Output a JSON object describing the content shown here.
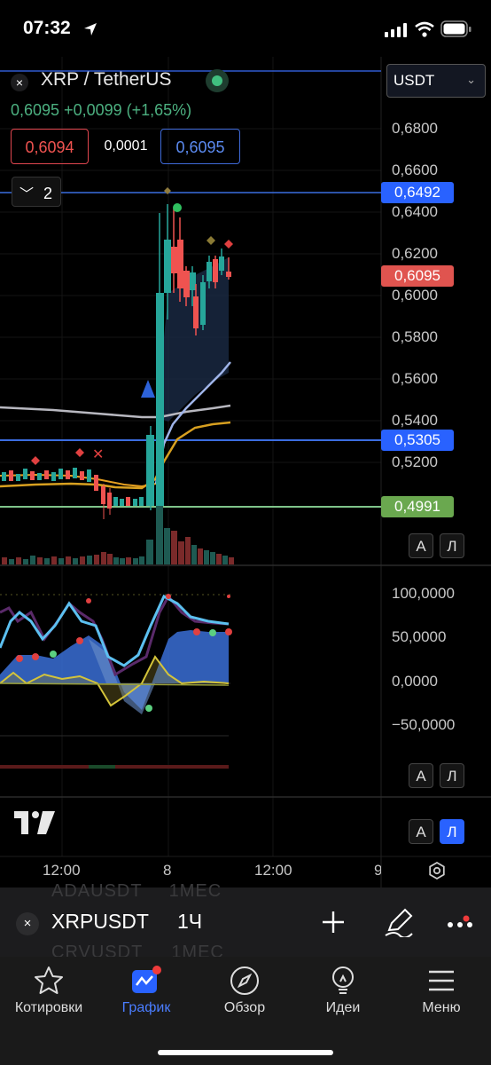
{
  "status": {
    "time": "07:32"
  },
  "header": {
    "pair": "XRP / TetherUS",
    "close": "×",
    "price_change": "0,6095  +0,0099 (+1,65%)",
    "sell_price": "0,6094",
    "spread": "0,0001",
    "buy_price": "0,6095",
    "collapse_count": "2",
    "currency": "USDT"
  },
  "price_axis": {
    "labels": [
      "0,6800",
      "0,6600",
      "0,6400",
      "0,6200",
      "0,6000",
      "0,5800",
      "0,5600",
      "0,5400",
      "0,5200"
    ],
    "tags": {
      "high": "0,6492",
      "last": "0,6095",
      "mid": "0,5305",
      "low": "0,4991"
    }
  },
  "oscillator_axis": {
    "labels": [
      "100,0000",
      "50,0000",
      "0,0000",
      "−50,0000"
    ]
  },
  "scale_buttons": {
    "a": "A",
    "l": "Л"
  },
  "time_axis": {
    "ticks": [
      "12:00",
      "8",
      "12:00",
      "9"
    ]
  },
  "bottom": {
    "ghost_top": {
      "symbol": "ADAUSDT",
      "interval": "1МЕС"
    },
    "symbol": "XRPUSDT",
    "interval": "1Ч",
    "ghost_bottom": {
      "symbol": "CRVUSDT",
      "interval": "1МЕС"
    }
  },
  "nav": {
    "items": [
      {
        "label": "Котировки",
        "icon": "star-icon",
        "active": false
      },
      {
        "label": "График",
        "icon": "chart-icon",
        "active": true
      },
      {
        "label": "Обзор",
        "icon": "compass-icon",
        "active": false
      },
      {
        "label": "Идеи",
        "icon": "lightbulb-icon",
        "active": false
      },
      {
        "label": "Меню",
        "icon": "menu-icon",
        "active": false
      }
    ]
  },
  "colors": {
    "up": "#26a69a",
    "down": "#ef5350",
    "accent": "#2962ff",
    "support": "#4caf50"
  }
}
